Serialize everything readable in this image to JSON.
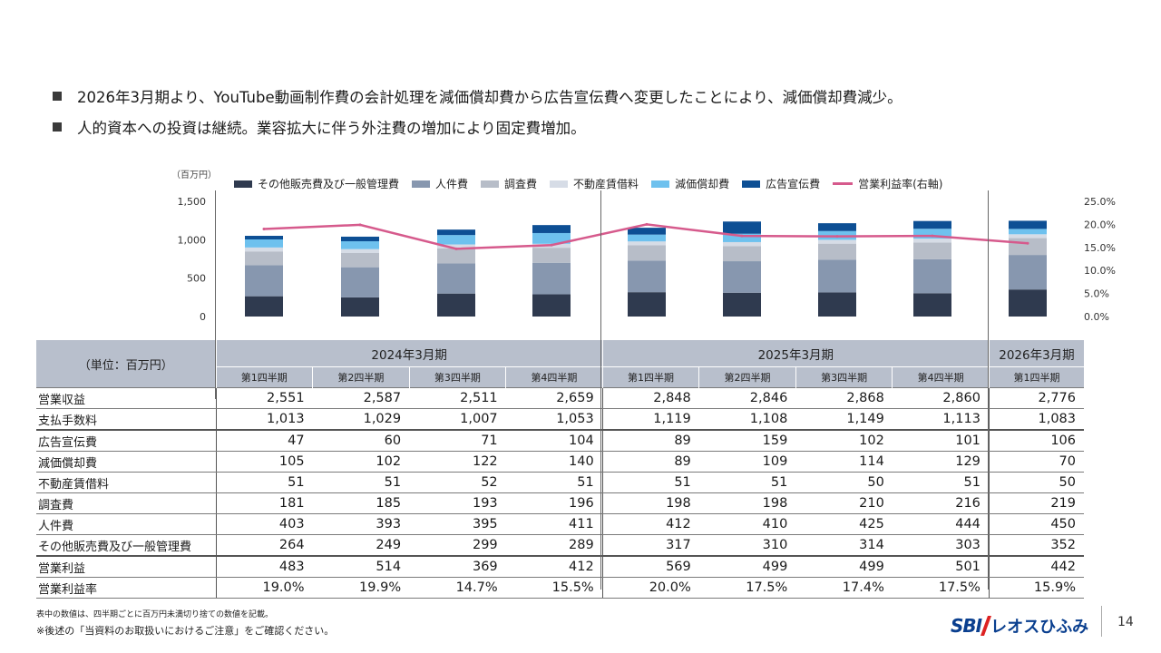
{
  "bullets": [
    "2026年3月期より、YouTube動画制作費の会計処理を減価償却費から広告宣伝費へ変更したことにより、減価償却費減少。",
    "人的資本への投資は継続。業容拡大に伴う外注費の増加により固定費増加。"
  ],
  "chart_data": {
    "type": "bar",
    "stacked": true,
    "unit_label": "（百万円）",
    "categories": [
      "2024Q1",
      "2024Q2",
      "2024Q3",
      "2024Q4",
      "2025Q1",
      "2025Q2",
      "2025Q3",
      "2025Q4",
      "2026Q1"
    ],
    "series": [
      {
        "name": "その他販売費及び一般管理費",
        "color": "#2f3a4f",
        "values": [
          264,
          249,
          299,
          289,
          317,
          310,
          314,
          303,
          352
        ]
      },
      {
        "name": "人件費",
        "color": "#8797af",
        "values": [
          403,
          393,
          395,
          411,
          412,
          410,
          425,
          444,
          450
        ]
      },
      {
        "name": "調査費",
        "color": "#b7bdc8",
        "values": [
          181,
          185,
          193,
          196,
          198,
          198,
          210,
          216,
          219
        ]
      },
      {
        "name": "不動産賃借料",
        "color": "#d6dce6",
        "values": [
          51,
          51,
          52,
          51,
          51,
          51,
          50,
          51,
          50
        ]
      },
      {
        "name": "減価償却費",
        "color": "#6ec1ee",
        "values": [
          105,
          102,
          122,
          140,
          89,
          109,
          114,
          129,
          70
        ]
      },
      {
        "name": "広告宣伝費",
        "color": "#0d4f94",
        "values": [
          47,
          60,
          71,
          104,
          89,
          159,
          102,
          101,
          106
        ]
      }
    ],
    "line": {
      "name": "営業利益率(右軸)",
      "color": "#d65a8c",
      "values": [
        19.0,
        19.9,
        14.7,
        15.5,
        20.0,
        17.5,
        17.4,
        17.5,
        15.9
      ]
    },
    "y_left": {
      "min": 0,
      "max": 1500,
      "ticks": [
        "0",
        "500",
        "1,000",
        "1,500"
      ]
    },
    "y_right": {
      "min": 0,
      "max": 25,
      "ticks": [
        "0.0%",
        "5.0%",
        "10.0%",
        "15.0%",
        "20.0%",
        "25.0%"
      ]
    },
    "grid": false,
    "legend_position": "top"
  },
  "table": {
    "unit_header": "（単位：百万円）",
    "years": [
      {
        "label": "2024年3月期",
        "span": 4
      },
      {
        "label": "2025年3月期",
        "span": 4
      },
      {
        "label": "2026年3月期",
        "span": 1
      }
    ],
    "quarters": [
      "第1四半期",
      "第2四半期",
      "第3四半期",
      "第4四半期",
      "第1四半期",
      "第2四半期",
      "第3四半期",
      "第4四半期",
      "第1四半期"
    ],
    "rows": [
      {
        "label": "営業収益",
        "values": [
          "2,551",
          "2,587",
          "2,511",
          "2,659",
          "2,848",
          "2,846",
          "2,868",
          "2,860",
          "2,776"
        ]
      },
      {
        "label": "支払手数料",
        "values": [
          "1,013",
          "1,029",
          "1,007",
          "1,053",
          "1,119",
          "1,108",
          "1,149",
          "1,113",
          "1,083"
        ],
        "thick": true
      },
      {
        "label": "広告宣伝費",
        "values": [
          "47",
          "60",
          "71",
          "104",
          "89",
          "159",
          "102",
          "101",
          "106"
        ]
      },
      {
        "label": "減価償却費",
        "values": [
          "105",
          "102",
          "122",
          "140",
          "89",
          "109",
          "114",
          "129",
          "70"
        ]
      },
      {
        "label": "不動産賃借料",
        "values": [
          "51",
          "51",
          "52",
          "51",
          "51",
          "51",
          "50",
          "51",
          "50"
        ]
      },
      {
        "label": "調査費",
        "values": [
          "181",
          "185",
          "193",
          "196",
          "198",
          "198",
          "210",
          "216",
          "219"
        ]
      },
      {
        "label": "人件費",
        "values": [
          "403",
          "393",
          "395",
          "411",
          "412",
          "410",
          "425",
          "444",
          "450"
        ]
      },
      {
        "label": "その他販売費及び一般管理費",
        "values": [
          "264",
          "249",
          "299",
          "289",
          "317",
          "310",
          "314",
          "303",
          "352"
        ],
        "thick": true
      },
      {
        "label": "営業利益",
        "values": [
          "483",
          "514",
          "369",
          "412",
          "569",
          "499",
          "499",
          "501",
          "442"
        ]
      },
      {
        "label": "営業利益率",
        "values": [
          "19.0%",
          "19.9%",
          "14.7%",
          "15.5%",
          "20.0%",
          "17.5%",
          "17.4%",
          "17.5%",
          "15.9%"
        ]
      }
    ]
  },
  "footnotes": {
    "note1": "表中の数値は、四半期ごとに百万円未満切り捨ての数値を記載。",
    "note2": "※後述の「当資料のお取扱いにおけるご注意」をご確認ください。"
  },
  "logo": {
    "sbi": "SBI",
    "name": "レオスひふみ"
  },
  "page_number": "14"
}
